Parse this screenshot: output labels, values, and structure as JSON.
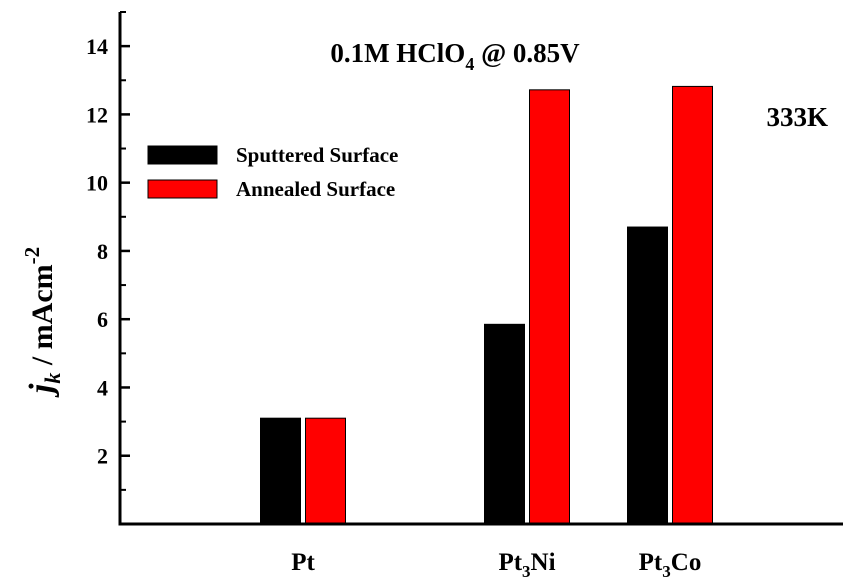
{
  "chart_data": {
    "type": "bar",
    "title_parts": [
      "0.1M HClO",
      "4",
      " @ 0.85V"
    ],
    "annotation": "333K",
    "ylabel_parts": {
      "main": "j",
      "sub": "k",
      "rest": " / mAcm",
      "sup": "-2"
    },
    "xlabel": "",
    "ylim": [
      0,
      15
    ],
    "yticks": [
      2,
      4,
      6,
      8,
      10,
      12,
      14
    ],
    "categories": [
      {
        "base": "Pt",
        "sub": "",
        "tail": ""
      },
      {
        "base": "Pt",
        "sub": "3",
        "tail": "Ni"
      },
      {
        "base": "Pt",
        "sub": "3",
        "tail": "Co"
      }
    ],
    "series": [
      {
        "name": "Sputtered Surface",
        "color": "#000000",
        "values": [
          3.1,
          5.85,
          8.7
        ]
      },
      {
        "name": "Annealed Surface",
        "color": "#ff0000",
        "values": [
          3.1,
          12.72,
          12.82
        ]
      }
    ],
    "legend_position": "upper-left",
    "grid": false
  }
}
